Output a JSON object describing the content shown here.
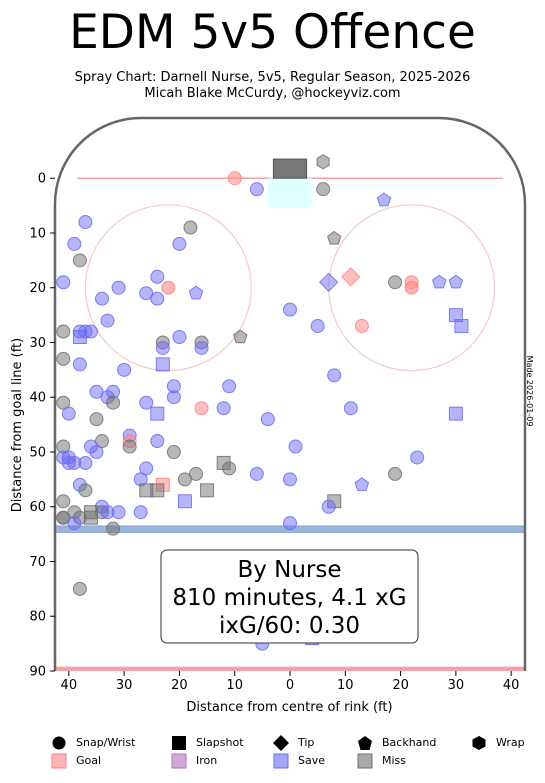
{
  "header": {
    "title": "EDM 5v5 Offence",
    "subtitle1": "Spray Chart: Darnell Nurse, 5v5, Regular Season, 2025-2026",
    "subtitle2": "Micah Blake McCurdy, @hockeyviz.com"
  },
  "side_note": "Made 2026-01-09",
  "summary_box": {
    "line1": "By Nurse",
    "line2": "810 minutes, 4.1 xG",
    "line3": "ixG/60: 0.30"
  },
  "legend": {
    "shapes": [
      {
        "shape": "circle",
        "label": "Snap/Wrist"
      },
      {
        "shape": "square",
        "label": "Slapshot"
      },
      {
        "shape": "diamond",
        "label": "Tip"
      },
      {
        "shape": "pentagon",
        "label": "Backhand"
      },
      {
        "shape": "hexagon",
        "label": "Wrap"
      }
    ],
    "outcomes": [
      {
        "key": "goal",
        "label": "Goal",
        "color": "#ff8080"
      },
      {
        "key": "iron",
        "label": "Iron",
        "color": "#b070c0"
      },
      {
        "key": "save",
        "label": "Save",
        "color": "#6b6bf5"
      },
      {
        "key": "miss",
        "label": "Miss",
        "color": "#707070"
      }
    ]
  },
  "colors": {
    "goal": "#ff8080",
    "iron": "#b070c0",
    "save": "#6b6bf5",
    "miss": "#707070",
    "boards": "#666666",
    "goal_line": "#f4a0a8",
    "blue_line": "#9cb4dc",
    "circle": "#f8c8c8",
    "crease": "#e0ffff"
  },
  "chart_data": {
    "type": "scatter",
    "xlabel": "Distance from centre of rink (ft)",
    "ylabel": "Distance from goal line (ft)",
    "xlim": [
      42.5,
      -42.5
    ],
    "ylim": [
      90,
      -11
    ],
    "xticks": [
      40,
      30,
      20,
      10,
      0,
      -10,
      -20,
      -30,
      -40
    ],
    "xtick_labels": [
      "40",
      "30",
      "20",
      "10",
      "0",
      "10",
      "20",
      "30",
      "40"
    ],
    "yticks": [
      0,
      10,
      20,
      30,
      40,
      50,
      60,
      70,
      80,
      90
    ],
    "points": [
      {
        "x": 10,
        "y": 0,
        "shape": "circle",
        "outcome": "goal"
      },
      {
        "x": 6,
        "y": 2,
        "shape": "circle",
        "outcome": "save"
      },
      {
        "x": -6,
        "y": 2,
        "shape": "circle",
        "outcome": "miss"
      },
      {
        "x": -6,
        "y": -3,
        "shape": "hexagon",
        "outcome": "miss"
      },
      {
        "x": -17,
        "y": 4,
        "shape": "pentagon",
        "outcome": "save"
      },
      {
        "x": 37,
        "y": 8,
        "shape": "circle",
        "outcome": "save"
      },
      {
        "x": 18,
        "y": 9,
        "shape": "circle",
        "outcome": "miss"
      },
      {
        "x": 39,
        "y": 12,
        "shape": "circle",
        "outcome": "save"
      },
      {
        "x": 20,
        "y": 12,
        "shape": "circle",
        "outcome": "save"
      },
      {
        "x": -8,
        "y": 11,
        "shape": "pentagon",
        "outcome": "miss"
      },
      {
        "x": 38,
        "y": 15,
        "shape": "circle",
        "outcome": "miss"
      },
      {
        "x": 24,
        "y": 18,
        "shape": "circle",
        "outcome": "save"
      },
      {
        "x": 41,
        "y": 19,
        "shape": "circle",
        "outcome": "save"
      },
      {
        "x": 31,
        "y": 20,
        "shape": "circle",
        "outcome": "save"
      },
      {
        "x": 22,
        "y": 20,
        "shape": "circle",
        "outcome": "goal"
      },
      {
        "x": 26,
        "y": 21,
        "shape": "circle",
        "outcome": "save"
      },
      {
        "x": 17,
        "y": 21,
        "shape": "pentagon",
        "outcome": "save"
      },
      {
        "x": 34,
        "y": 22,
        "shape": "circle",
        "outcome": "save"
      },
      {
        "x": 24,
        "y": 22,
        "shape": "circle",
        "outcome": "save"
      },
      {
        "x": -11,
        "y": 18,
        "shape": "diamond",
        "outcome": "goal"
      },
      {
        "x": -7,
        "y": 19,
        "shape": "diamond",
        "outcome": "save"
      },
      {
        "x": -19,
        "y": 19,
        "shape": "circle",
        "outcome": "miss"
      },
      {
        "x": -22,
        "y": 19,
        "shape": "circle",
        "outcome": "goal"
      },
      {
        "x": -22,
        "y": 20,
        "shape": "circle",
        "outcome": "goal"
      },
      {
        "x": -27,
        "y": 19,
        "shape": "pentagon",
        "outcome": "save"
      },
      {
        "x": -30,
        "y": 19,
        "shape": "pentagon",
        "outcome": "save"
      },
      {
        "x": 0,
        "y": 24,
        "shape": "circle",
        "outcome": "save"
      },
      {
        "x": -30,
        "y": 25,
        "shape": "square",
        "outcome": "save"
      },
      {
        "x": -31,
        "y": 27,
        "shape": "square",
        "outcome": "save"
      },
      {
        "x": -5,
        "y": 27,
        "shape": "circle",
        "outcome": "save"
      },
      {
        "x": -13,
        "y": 27,
        "shape": "circle",
        "outcome": "goal"
      },
      {
        "x": 33,
        "y": 26,
        "shape": "circle",
        "outcome": "save"
      },
      {
        "x": 41,
        "y": 28,
        "shape": "circle",
        "outcome": "miss"
      },
      {
        "x": 38,
        "y": 28,
        "shape": "circle",
        "outcome": "save"
      },
      {
        "x": 37,
        "y": 28,
        "shape": "circle",
        "outcome": "save"
      },
      {
        "x": 36,
        "y": 28,
        "shape": "circle",
        "outcome": "save"
      },
      {
        "x": 38,
        "y": 29,
        "shape": "square",
        "outcome": "save"
      },
      {
        "x": 9,
        "y": 29,
        "shape": "pentagon",
        "outcome": "miss"
      },
      {
        "x": 20,
        "y": 29,
        "shape": "circle",
        "outcome": "save"
      },
      {
        "x": 23,
        "y": 30,
        "shape": "circle",
        "outcome": "miss"
      },
      {
        "x": 23,
        "y": 31,
        "shape": "circle",
        "outcome": "save"
      },
      {
        "x": 16,
        "y": 30,
        "shape": "circle",
        "outcome": "miss"
      },
      {
        "x": 16,
        "y": 31,
        "shape": "circle",
        "outcome": "save"
      },
      {
        "x": 41,
        "y": 33,
        "shape": "circle",
        "outcome": "miss"
      },
      {
        "x": 23,
        "y": 34,
        "shape": "square",
        "outcome": "save"
      },
      {
        "x": 38,
        "y": 34,
        "shape": "circle",
        "outcome": "save"
      },
      {
        "x": 30,
        "y": 35,
        "shape": "circle",
        "outcome": "save"
      },
      {
        "x": -8,
        "y": 36,
        "shape": "circle",
        "outcome": "save"
      },
      {
        "x": 21,
        "y": 38,
        "shape": "circle",
        "outcome": "save"
      },
      {
        "x": 11,
        "y": 38,
        "shape": "circle",
        "outcome": "save"
      },
      {
        "x": 35,
        "y": 39,
        "shape": "circle",
        "outcome": "save"
      },
      {
        "x": 32,
        "y": 39,
        "shape": "circle",
        "outcome": "save"
      },
      {
        "x": 33,
        "y": 40,
        "shape": "circle",
        "outcome": "save"
      },
      {
        "x": 21,
        "y": 40,
        "shape": "circle",
        "outcome": "save"
      },
      {
        "x": 41,
        "y": 41,
        "shape": "circle",
        "outcome": "miss"
      },
      {
        "x": 32,
        "y": 41,
        "shape": "circle",
        "outcome": "miss"
      },
      {
        "x": 26,
        "y": 41,
        "shape": "circle",
        "outcome": "save"
      },
      {
        "x": 16,
        "y": 42,
        "shape": "circle",
        "outcome": "goal"
      },
      {
        "x": 12,
        "y": 42,
        "shape": "circle",
        "outcome": "save"
      },
      {
        "x": -11,
        "y": 42,
        "shape": "circle",
        "outcome": "save"
      },
      {
        "x": 40,
        "y": 43,
        "shape": "circle",
        "outcome": "save"
      },
      {
        "x": 24,
        "y": 43,
        "shape": "square",
        "outcome": "save"
      },
      {
        "x": -30,
        "y": 43,
        "shape": "square",
        "outcome": "save"
      },
      {
        "x": 35,
        "y": 44,
        "shape": "circle",
        "outcome": "miss"
      },
      {
        "x": 4,
        "y": 44,
        "shape": "circle",
        "outcome": "save"
      },
      {
        "x": 29,
        "y": 47,
        "shape": "circle",
        "outcome": "save"
      },
      {
        "x": 29,
        "y": 48,
        "shape": "circle",
        "outcome": "goal"
      },
      {
        "x": 24,
        "y": 48,
        "shape": "circle",
        "outcome": "save"
      },
      {
        "x": 34,
        "y": 48,
        "shape": "circle",
        "outcome": "miss"
      },
      {
        "x": 29,
        "y": 49,
        "shape": "circle",
        "outcome": "miss"
      },
      {
        "x": 36,
        "y": 49,
        "shape": "circle",
        "outcome": "save"
      },
      {
        "x": 41,
        "y": 49,
        "shape": "circle",
        "outcome": "miss"
      },
      {
        "x": -1,
        "y": 49,
        "shape": "circle",
        "outcome": "save"
      },
      {
        "x": 35,
        "y": 50,
        "shape": "circle",
        "outcome": "save"
      },
      {
        "x": 21,
        "y": 50,
        "shape": "circle",
        "outcome": "miss"
      },
      {
        "x": 41,
        "y": 51,
        "shape": "circle",
        "outcome": "save"
      },
      {
        "x": 40,
        "y": 51,
        "shape": "circle",
        "outcome": "save"
      },
      {
        "x": 40,
        "y": 52,
        "shape": "circle",
        "outcome": "save"
      },
      {
        "x": 39,
        "y": 52,
        "shape": "circle",
        "outcome": "save"
      },
      {
        "x": 37,
        "y": 52,
        "shape": "circle",
        "outcome": "save"
      },
      {
        "x": 12,
        "y": 52,
        "shape": "square",
        "outcome": "miss"
      },
      {
        "x": 11,
        "y": 53,
        "shape": "circle",
        "outcome": "miss"
      },
      {
        "x": -23,
        "y": 51,
        "shape": "circle",
        "outcome": "save"
      },
      {
        "x": 26,
        "y": 53,
        "shape": "circle",
        "outcome": "save"
      },
      {
        "x": 6,
        "y": 54,
        "shape": "circle",
        "outcome": "save"
      },
      {
        "x": 17,
        "y": 54,
        "shape": "circle",
        "outcome": "miss"
      },
      {
        "x": -19,
        "y": 54,
        "shape": "circle",
        "outcome": "miss"
      },
      {
        "x": 27,
        "y": 55,
        "shape": "circle",
        "outcome": "save"
      },
      {
        "x": 19,
        "y": 55,
        "shape": "circle",
        "outcome": "miss"
      },
      {
        "x": 0,
        "y": 55,
        "shape": "circle",
        "outcome": "save"
      },
      {
        "x": -13,
        "y": 56,
        "shape": "pentagon",
        "outcome": "save"
      },
      {
        "x": 38,
        "y": 56,
        "shape": "circle",
        "outcome": "save"
      },
      {
        "x": 23,
        "y": 56,
        "shape": "square",
        "outcome": "goal"
      },
      {
        "x": 26,
        "y": 57,
        "shape": "square",
        "outcome": "miss"
      },
      {
        "x": 24,
        "y": 57,
        "shape": "square",
        "outcome": "miss"
      },
      {
        "x": 15,
        "y": 57,
        "shape": "square",
        "outcome": "miss"
      },
      {
        "x": 37,
        "y": 57,
        "shape": "circle",
        "outcome": "miss"
      },
      {
        "x": 41,
        "y": 59,
        "shape": "circle",
        "outcome": "miss"
      },
      {
        "x": 19,
        "y": 59,
        "shape": "square",
        "outcome": "save"
      },
      {
        "x": -8,
        "y": 59,
        "shape": "square",
        "outcome": "miss"
      },
      {
        "x": -7,
        "y": 60,
        "shape": "circle",
        "outcome": "save"
      },
      {
        "x": 34,
        "y": 60,
        "shape": "circle",
        "outcome": "save"
      },
      {
        "x": 39,
        "y": 61,
        "shape": "circle",
        "outcome": "miss"
      },
      {
        "x": 34,
        "y": 61,
        "shape": "circle",
        "outcome": "miss"
      },
      {
        "x": 36,
        "y": 61,
        "shape": "square",
        "outcome": "miss"
      },
      {
        "x": 33,
        "y": 61,
        "shape": "circle",
        "outcome": "save"
      },
      {
        "x": 31,
        "y": 61,
        "shape": "circle",
        "outcome": "save"
      },
      {
        "x": 27,
        "y": 61,
        "shape": "circle",
        "outcome": "save"
      },
      {
        "x": 41,
        "y": 62,
        "shape": "circle",
        "outcome": "miss"
      },
      {
        "x": 41,
        "y": 62,
        "shape": "circle",
        "outcome": "miss"
      },
      {
        "x": 38,
        "y": 62,
        "shape": "circle",
        "outcome": "miss"
      },
      {
        "x": 36,
        "y": 62,
        "shape": "square",
        "outcome": "miss"
      },
      {
        "x": 39,
        "y": 63,
        "shape": "circle",
        "outcome": "save"
      },
      {
        "x": 0,
        "y": 63,
        "shape": "circle",
        "outcome": "save"
      },
      {
        "x": 32,
        "y": 64,
        "shape": "circle",
        "outcome": "miss"
      },
      {
        "x": 38,
        "y": 75,
        "shape": "circle",
        "outcome": "miss"
      },
      {
        "x": 5,
        "y": 85,
        "shape": "circle",
        "outcome": "save"
      },
      {
        "x": -4,
        "y": 84,
        "shape": "square",
        "outcome": "save"
      }
    ]
  }
}
